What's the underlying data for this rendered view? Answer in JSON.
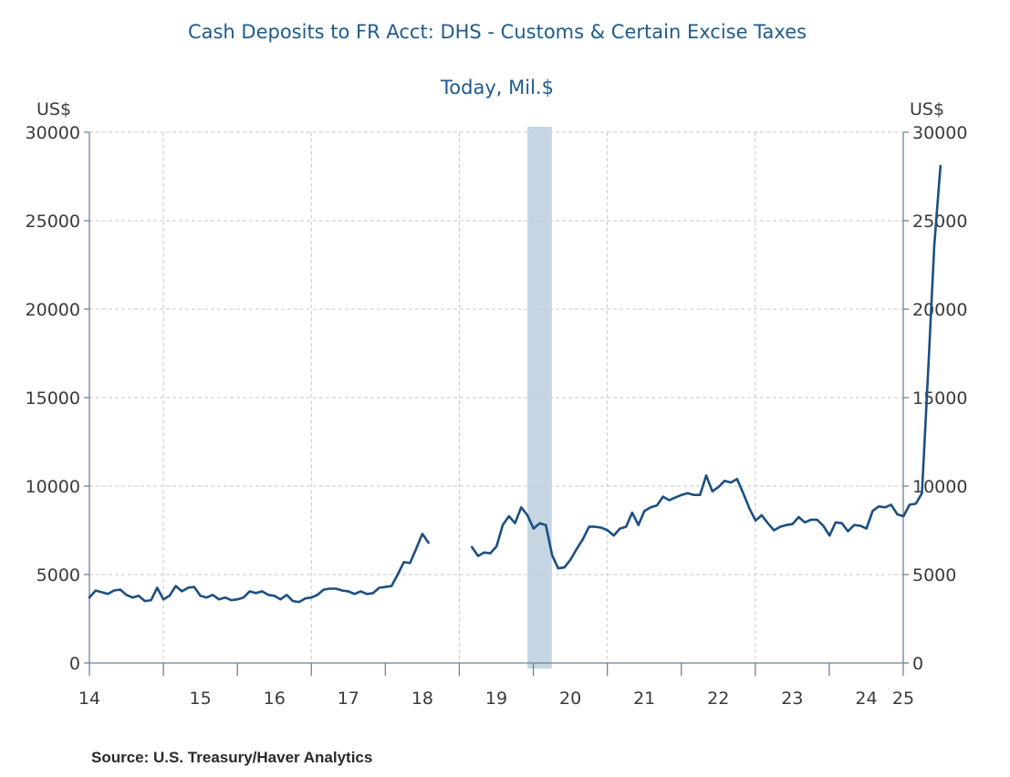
{
  "chart_data": {
    "type": "line",
    "title": "Cash Deposits to FR Acct: DHS - Customs & Certain Excise Taxes",
    "subtitle": "Today, Mil.$",
    "ylabel_left": "US$",
    "ylabel_right": "US$",
    "ylim": [
      0,
      30000
    ],
    "xlim": [
      2014,
      2025
    ],
    "yticks": [
      0,
      5000,
      10000,
      15000,
      20000,
      25000,
      30000
    ],
    "ytick_labels": [
      "0",
      "5000",
      "10000",
      "15000",
      "20000",
      "25000",
      "30000"
    ],
    "xtick_labels": [
      "14",
      "15",
      "16",
      "17",
      "18",
      "19",
      "20",
      "21",
      "22",
      "23",
      "24",
      "25"
    ],
    "grid": true,
    "recession": {
      "start": 2019.92,
      "end": 2020.25,
      "color": "#c5d6e2"
    },
    "series": [
      {
        "name": "Cash Deposits to FR Acct: DHS - Customs & Certain Excise Taxes",
        "color": "#1c4f82",
        "segments": [
          {
            "x_start": 2014.0,
            "step": 0.08333,
            "values": [
              3700,
              4100,
              4000,
              3900,
              4100,
              4150,
              3850,
              3700,
              3800,
              3500,
              3550,
              4250,
              3600,
              3800,
              4350,
              4050,
              4250,
              4300,
              3800,
              3700,
              3850,
              3600,
              3700,
              3550,
              3600,
              3700,
              4050,
              3950,
              4050,
              3850,
              3800,
              3600,
              3850,
              3500,
              3450,
              3650,
              3700,
              3850,
              4150,
              4200,
              4200,
              4100,
              4050,
              3900,
              4050,
              3900,
              3950,
              4250,
              4300,
              4350,
              5000,
              5700,
              5650,
              6450,
              7300,
              6800
            ]
          },
          {
            "x_start": 2019.17,
            "step": 0.08333,
            "values": [
              6550,
              6050,
              6250,
              6200,
              6600,
              7800,
              8300,
              7900,
              8800,
              8350,
              7600,
              7900,
              7800,
              6100,
              5350,
              5400,
              5850,
              6450,
              7000,
              7700,
              7700,
              7650,
              7500,
              7200,
              7600,
              7700,
              8500,
              7800,
              8600,
              8800,
              8900,
              9400,
              9200,
              9350,
              9500,
              9600,
              9500,
              9500,
              10600,
              9700,
              9950,
              10300,
              10200,
              10400,
              9600,
              8750,
              8050,
              8350,
              7900,
              7500,
              7700,
              7800,
              7850,
              8250,
              7950,
              8100,
              8100,
              7750,
              7200,
              7950,
              7900,
              7450,
              7800,
              7750,
              7600,
              8600,
              8850,
              8800,
              8950,
              8400,
              8300,
              8950,
              9000,
              9600,
              16500,
              23600,
              28100
            ]
          }
        ]
      }
    ],
    "source": "Source:  U.S. Treasury/Haver Analytics"
  },
  "colors": {
    "title": "#1f5b8c",
    "series": "#1c4f82",
    "axis": "#6c8296",
    "grid": "#c9c9c9",
    "recession": "#c5d6e2",
    "text": "#3a3a3a"
  }
}
